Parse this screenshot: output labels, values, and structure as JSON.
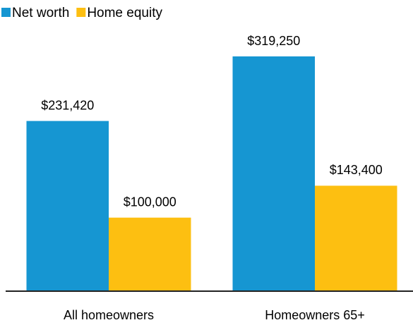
{
  "chart_data": {
    "type": "bar",
    "categories": [
      "All homeowners",
      "Homeowners 65+"
    ],
    "series": [
      {
        "name": "Net worth",
        "color": "#1696d2",
        "values": [
          231420,
          319250
        ],
        "value_labels": [
          "$231,420",
          "$319,250"
        ]
      },
      {
        "name": "Home equity",
        "color": "#fdbf11",
        "values": [
          100000,
          143400
        ],
        "value_labels": [
          "$100,000",
          "$143,400"
        ]
      }
    ],
    "legend": "top-left"
  }
}
